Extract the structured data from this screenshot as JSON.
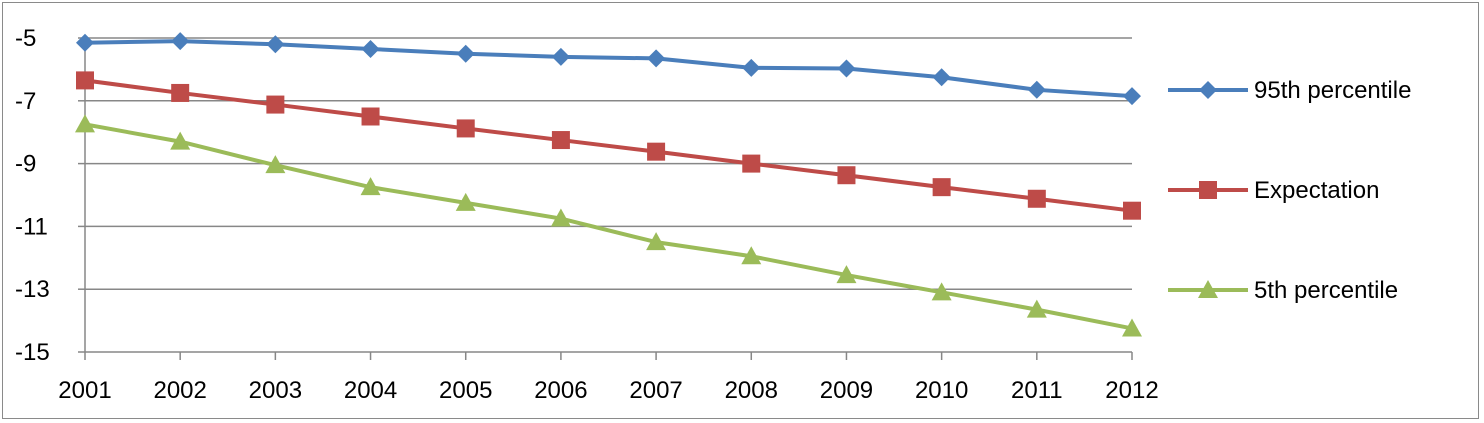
{
  "chart_data": {
    "type": "line",
    "title": "",
    "xlabel": "",
    "ylabel": "",
    "categories": [
      "2001",
      "2002",
      "2003",
      "2004",
      "2005",
      "2006",
      "2007",
      "2008",
      "2009",
      "2010",
      "2011",
      "2012"
    ],
    "ylim": [
      -15,
      -5
    ],
    "yticks": [
      -5,
      -7,
      -9,
      -11,
      -13,
      -15
    ],
    "grid": "horizontal",
    "legend_position": "right",
    "series": [
      {
        "name": "95th percentile",
        "color": "#4A7EBB",
        "marker": "diamond",
        "values": [
          -5.15,
          -5.1,
          -5.2,
          -5.35,
          -5.5,
          -5.6,
          -5.65,
          -5.95,
          -5.97,
          -6.25,
          -6.65,
          -6.85
        ]
      },
      {
        "name": "Expectation",
        "color": "#BE4B48",
        "marker": "square",
        "values": [
          -6.35,
          -6.75,
          -7.12,
          -7.5,
          -7.88,
          -8.25,
          -8.62,
          -9.0,
          -9.37,
          -9.75,
          -10.12,
          -10.5
        ]
      },
      {
        "name": "5th percentile",
        "color": "#9BBB59",
        "marker": "triangle",
        "values": [
          -7.75,
          -8.3,
          -9.05,
          -9.75,
          -10.25,
          -10.75,
          -11.5,
          -11.95,
          -12.55,
          -13.1,
          -13.65,
          -14.25
        ]
      }
    ]
  }
}
